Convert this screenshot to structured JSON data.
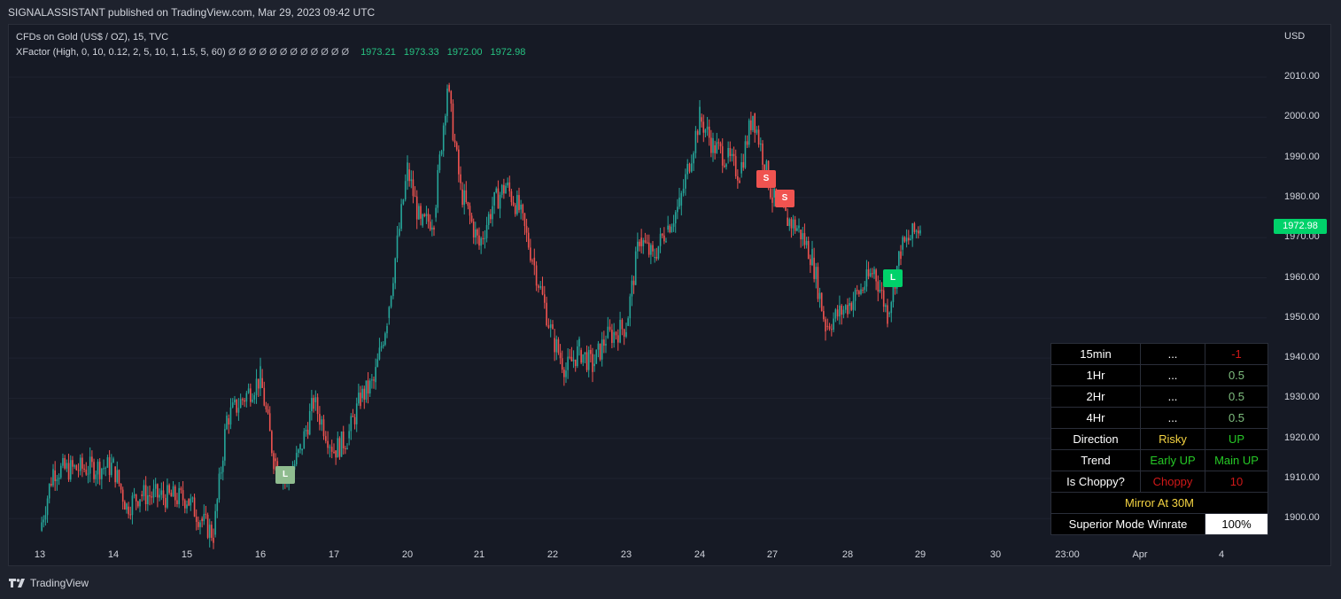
{
  "header": {
    "publish_text": "SIGNALASSISTANT published on TradingView.com, Mar 29, 2023 09:42 UTC"
  },
  "legend": {
    "symbol_line": "CFDs on Gold (US$ / OZ), 15, TVC",
    "indicator_name": "XFactor (High, 0, 10, 0.12, 2, 5, 10, 1, 1.5, 5, 60)",
    "nan_glyph": "Ø Ø Ø Ø Ø Ø Ø Ø Ø Ø Ø Ø",
    "values": [
      "1973.21",
      "1973.33",
      "1972.00",
      "1972.98"
    ]
  },
  "price_axis": {
    "currency": "USD",
    "labels": [
      "2010.00",
      "2000.00",
      "1990.00",
      "1980.00",
      "1970.00",
      "1960.00",
      "1950.00",
      "1940.00",
      "1930.00",
      "1920.00",
      "1910.00",
      "1900.00"
    ],
    "last_price": "1972.98",
    "last_price_color": "#00d26a"
  },
  "time_axis": {
    "labels": [
      "13",
      "14",
      "15",
      "16",
      "17",
      "20",
      "21",
      "22",
      "23",
      "24",
      "27",
      "28",
      "29",
      "30",
      "23:00",
      "Apr",
      "4"
    ]
  },
  "chart_data": {
    "type": "candlestick",
    "title": "CFDs on Gold (US$ / OZ), 15, TVC",
    "ylim": [
      1895,
      2015
    ],
    "y_ticks": [
      1900,
      1910,
      1920,
      1930,
      1940,
      1950,
      1960,
      1970,
      1980,
      1990,
      2000,
      2010
    ],
    "x_ticks": [
      "13",
      "14",
      "15",
      "16",
      "17",
      "20",
      "21",
      "22",
      "23",
      "24",
      "27",
      "28",
      "29",
      "30",
      "23:00",
      "Apr",
      "4"
    ],
    "series": [
      {
        "name": "price",
        "points": [
          {
            "x": "13",
            "y": 1897
          },
          {
            "x": "13",
            "y": 1912
          },
          {
            "x": "14",
            "y": 1913
          },
          {
            "x": "14",
            "y": 1903
          },
          {
            "x": "14",
            "y": 1906
          },
          {
            "x": "15",
            "y": 1905
          },
          {
            "x": "15",
            "y": 1900
          },
          {
            "x": "15",
            "y": 1896
          },
          {
            "x": "15",
            "y": 1925
          },
          {
            "x": "16",
            "y": 1935
          },
          {
            "x": "16",
            "y": 1915
          },
          {
            "x": "16",
            "y": 1909
          },
          {
            "x": "16",
            "y": 1917
          },
          {
            "x": "16",
            "y": 1929
          },
          {
            "x": "17",
            "y": 1917
          },
          {
            "x": "17",
            "y": 1920
          },
          {
            "x": "17",
            "y": 1930
          },
          {
            "x": "17",
            "y": 1934
          },
          {
            "x": "17",
            "y": 1950
          },
          {
            "x": "20",
            "y": 1987
          },
          {
            "x": "20",
            "y": 1973
          },
          {
            "x": "20",
            "y": 1975
          },
          {
            "x": "20",
            "y": 2008
          },
          {
            "x": "20",
            "y": 1982
          },
          {
            "x": "21",
            "y": 1968
          },
          {
            "x": "21",
            "y": 1978
          },
          {
            "x": "21",
            "y": 1983
          },
          {
            "x": "21",
            "y": 1977
          },
          {
            "x": "21",
            "y": 1965
          },
          {
            "x": "22",
            "y": 1945
          },
          {
            "x": "22",
            "y": 1937
          },
          {
            "x": "22",
            "y": 1942
          },
          {
            "x": "22",
            "y": 1938
          },
          {
            "x": "22",
            "y": 1945
          },
          {
            "x": "23",
            "y": 1948
          },
          {
            "x": "23",
            "y": 1970
          },
          {
            "x": "23",
            "y": 1965
          },
          {
            "x": "23",
            "y": 1972
          },
          {
            "x": "23",
            "y": 1978
          },
          {
            "x": "24",
            "y": 2000
          },
          {
            "x": "24",
            "y": 1993
          },
          {
            "x": "24",
            "y": 1990
          },
          {
            "x": "24",
            "y": 1986
          },
          {
            "x": "24",
            "y": 2001
          },
          {
            "x": "27",
            "y": 1980
          },
          {
            "x": "27",
            "y": 1975
          },
          {
            "x": "27",
            "y": 1972
          },
          {
            "x": "27",
            "y": 1965
          },
          {
            "x": "27",
            "y": 1948
          },
          {
            "x": "28",
            "y": 1953
          },
          {
            "x": "28",
            "y": 1957
          },
          {
            "x": "28",
            "y": 1962
          },
          {
            "x": "28",
            "y": 1951
          },
          {
            "x": "28",
            "y": 1967
          },
          {
            "x": "29",
            "y": 1973
          }
        ]
      }
    ],
    "signals": [
      {
        "type": "L",
        "x": "16",
        "price": 1911
      },
      {
        "type": "S",
        "x": "27",
        "price": 1987
      },
      {
        "type": "S",
        "x": "27",
        "price": 1982
      },
      {
        "type": "L",
        "x": "28",
        "price": 1960
      }
    ],
    "legend_values": [
      "1973.21",
      "1973.33",
      "1972.00",
      "1972.98"
    ],
    "last_price": 1972.98,
    "colors": {
      "up": "#26a69a",
      "down": "#ef5350"
    }
  },
  "signals": {
    "long_label": "L",
    "short_label": "S"
  },
  "info_table": {
    "rows": [
      {
        "c1": "15min",
        "c2": "...",
        "c3": "-1",
        "c3_class": "c-red"
      },
      {
        "c1": "1Hr",
        "c2": "...",
        "c3": "0.5",
        "c3_class": "c-lgreen"
      },
      {
        "c1": "2Hr",
        "c2": "...",
        "c3": "0.5",
        "c3_class": "c-lgreen"
      },
      {
        "c1": "4Hr",
        "c2": "...",
        "c3": "0.5",
        "c3_class": "c-lgreen"
      },
      {
        "c1": "Direction",
        "c2": "Risky",
        "c3": "UP",
        "c2_class": "c-yellow",
        "c3_class": "c-green"
      },
      {
        "c1": "Trend",
        "c2": "Early UP",
        "c3": "Main UP",
        "c2_class": "c-green",
        "c3_class": "c-green"
      },
      {
        "c1": "Is Choppy?",
        "c2": "Choppy",
        "c3": "10",
        "c2_class": "c-red",
        "c3_class": "c-red"
      }
    ],
    "mirror": "Mirror At 30M",
    "winrate_label": "Superior Mode Winrate",
    "winrate_value": "100%"
  },
  "footer": {
    "brand": "TradingView"
  }
}
